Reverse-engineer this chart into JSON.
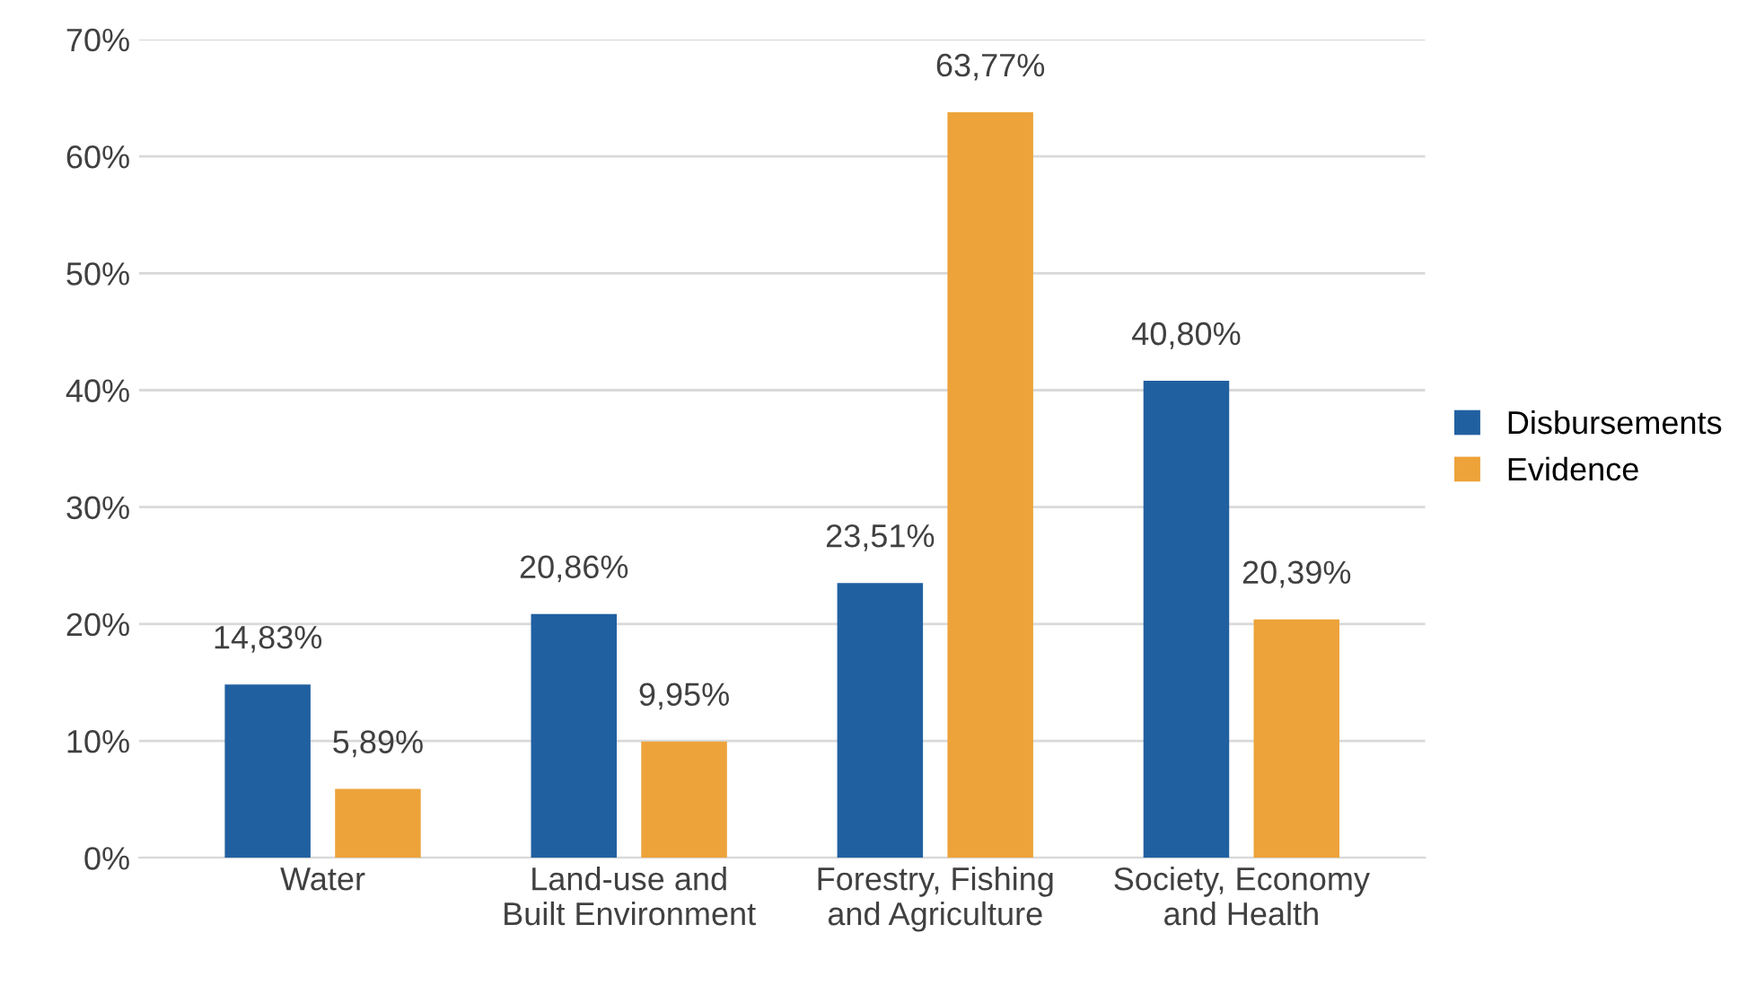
{
  "chart_data": {
    "type": "bar",
    "categories": [
      "Water",
      "Land-use and\nBuilt Environment",
      "Forestry, Fishing\nand Agriculture",
      "Society, Economy\nand Health"
    ],
    "series": [
      {
        "name": "Disbursements",
        "color": "#2160a0",
        "values": [
          14.83,
          20.86,
          23.51,
          40.8
        ],
        "value_labels": [
          "14,83%",
          "20,86%",
          "23,51%",
          "40,80%"
        ]
      },
      {
        "name": "Evidence",
        "color": "#eda33a",
        "values": [
          5.89,
          9.95,
          63.77,
          20.39
        ],
        "value_labels": [
          "5,89%",
          "9,95%",
          "63,77%",
          "20,39%"
        ]
      }
    ],
    "ylim": [
      0,
      70
    ],
    "yticks": [
      {
        "value": 0,
        "label": "0%"
      },
      {
        "value": 10,
        "label": "10%"
      },
      {
        "value": 20,
        "label": "20%"
      },
      {
        "value": 30,
        "label": "30%"
      },
      {
        "value": 40,
        "label": "40%"
      },
      {
        "value": 50,
        "label": "50%"
      },
      {
        "value": 60,
        "label": "60%"
      },
      {
        "value": 70,
        "label": "70%"
      }
    ],
    "grid": "y",
    "legend": "right"
  }
}
